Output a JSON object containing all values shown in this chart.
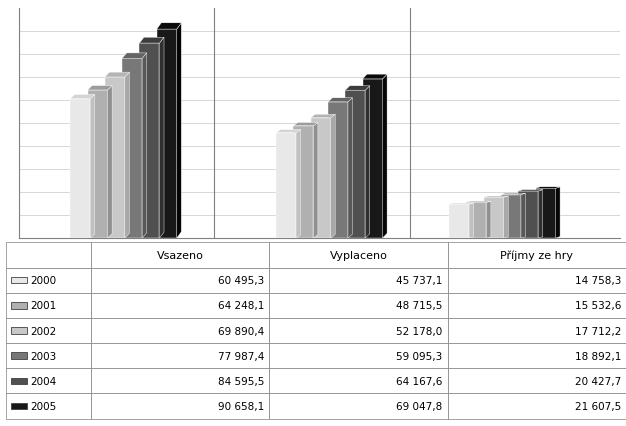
{
  "categories": [
    "Vsazeno",
    "Vyplaceno",
    "Příjmy ze hry"
  ],
  "years": [
    "2000",
    "2001",
    "2002",
    "2003",
    "2004",
    "2005"
  ],
  "values": {
    "Vsazeno": [
      60495.3,
      64248.1,
      69890.4,
      77987.4,
      84595.5,
      90658.1
    ],
    "Vyplaceno": [
      45737.1,
      48715.5,
      52178.0,
      59095.3,
      64167.6,
      69047.8
    ],
    "Příjmy ze hry": [
      14758.3,
      15532.6,
      17712.2,
      18892.1,
      20427.7,
      21607.5
    ]
  },
  "bar_colors": [
    "#e8e8e8",
    "#b0b0b0",
    "#c8c8c8",
    "#787878",
    "#505050",
    "#181818"
  ],
  "bar_colors_dark": [
    "#c0c0c0",
    "#909090",
    "#a8a8a8",
    "#585858",
    "#303030",
    "#050505"
  ],
  "bar_colors_top": [
    "#d4d4d4",
    "#9c9c9c",
    "#b4b4b4",
    "#646464",
    "#3c3c3c",
    "#0a0a0a"
  ],
  "table_rows": [
    [
      "2000",
      "60 495,3",
      "45 737,1",
      "14 758,3"
    ],
    [
      "2001",
      "64 248,1",
      "48 715,5",
      "15 532,6"
    ],
    [
      "2002",
      "69 890,4",
      "52 178,0",
      "17 712,2"
    ],
    [
      "2003",
      "77 987,4",
      "59 095,3",
      "18 892,1"
    ],
    [
      "2004",
      "84 595,5",
      "64 167,6",
      "20 427,7"
    ],
    [
      "2005",
      "90 658,1",
      "69 047,8",
      "21 607,5"
    ]
  ],
  "header_row": [
    "",
    "Vsazeno",
    "Vyplaceno",
    "Příjmy ze hry"
  ],
  "ylim": [
    0,
    100000
  ],
  "y_max_display": 95000,
  "grid_color": "#c8c8c8",
  "background_color": "#ffffff"
}
